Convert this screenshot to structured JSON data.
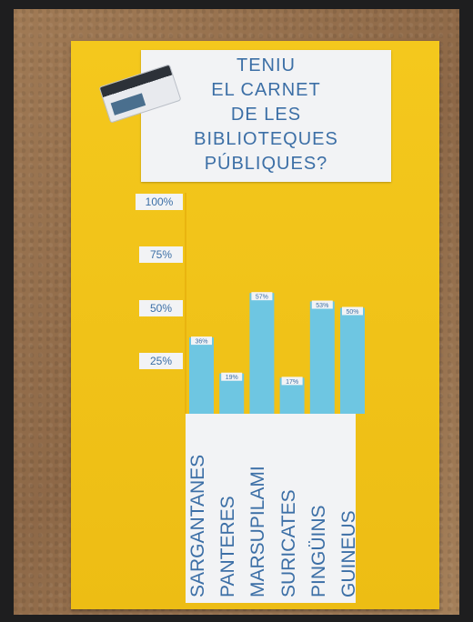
{
  "title_lines": [
    "TENIU",
    "EL CARNET",
    "DE LES",
    "BIBLIOTEQUES",
    "PÚBLIQUES?"
  ],
  "chart_data": {
    "type": "bar",
    "title": "TENIU EL CARNET DE LES BIBLIOTEQUES PÚBLIQUES?",
    "categories": [
      "SARGANTANES",
      "PANTERES",
      "MARSUPILAMI",
      "SURICATES",
      "PINGÜINS",
      "GUINEUS"
    ],
    "values": [
      36,
      19,
      57,
      17,
      53,
      50
    ],
    "bar_labels": [
      "36%",
      "19%",
      "57%",
      "17%",
      "53%",
      "50%"
    ],
    "ylim": [
      0,
      100
    ],
    "y_ticks": [
      {
        "value": 100,
        "label": "100%"
      },
      {
        "value": 75,
        "label": "75%"
      },
      {
        "value": 50,
        "label": "50%"
      },
      {
        "value": 25,
        "label": "25%"
      }
    ],
    "bar_color": "#6ec6e2",
    "text_color": "#3c6fa6",
    "board_color": "#f2c41c",
    "grid": false,
    "legend": "none"
  }
}
